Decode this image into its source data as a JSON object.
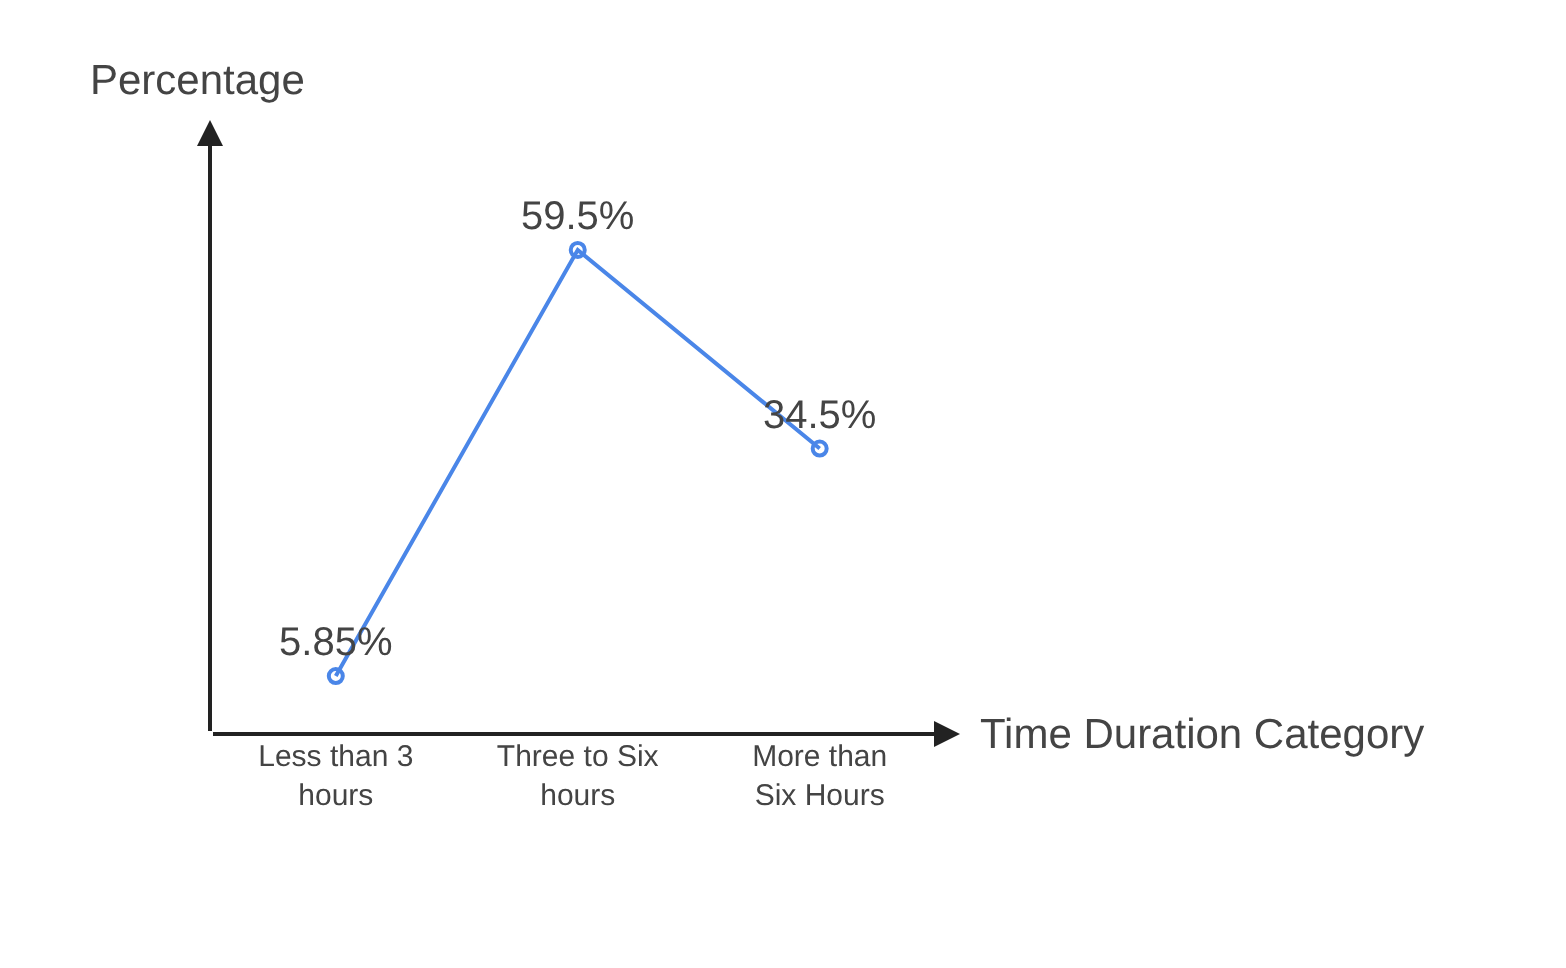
{
  "chart_data": {
    "type": "line",
    "xlabel": "Time Duration Category",
    "ylabel": "Percentage",
    "categories": [
      "Less than 3 hours",
      "Three to Six hours",
      "More than Six Hours"
    ],
    "series": [
      {
        "color": "#4a86e8",
        "values": [
          5.85,
          59.5,
          34.5
        ],
        "value_labels": [
          "5.85%",
          "59.5%",
          "34.5%"
        ]
      }
    ],
    "marker": "circle",
    "line_style": "solid"
  }
}
